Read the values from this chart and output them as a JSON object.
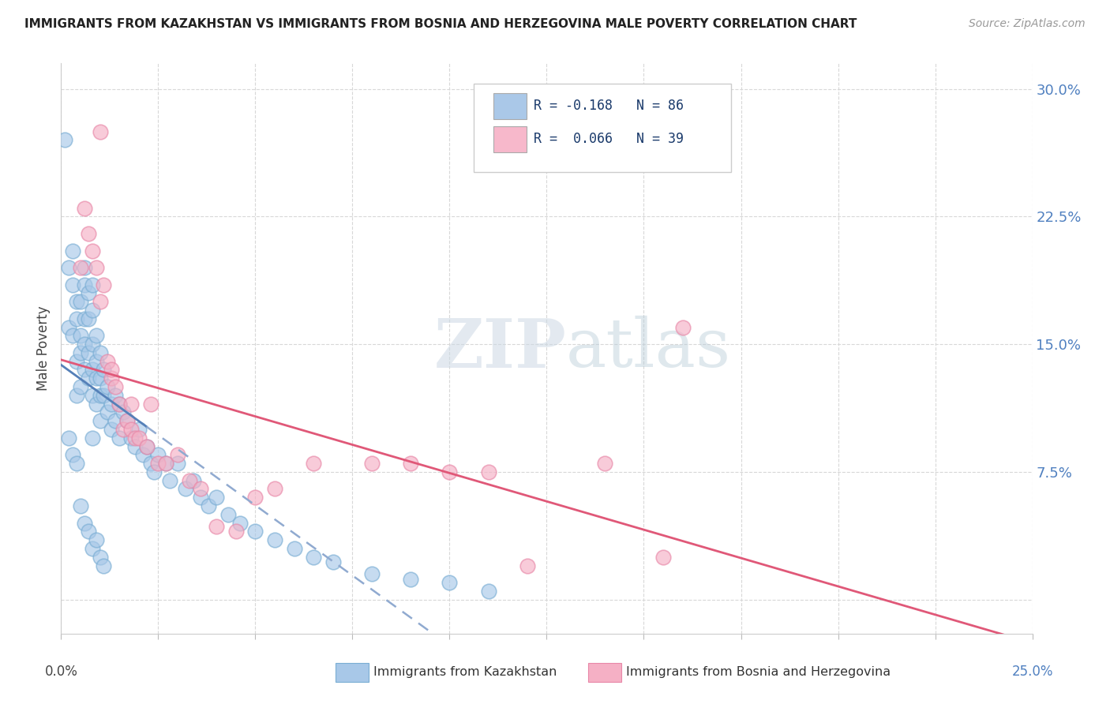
{
  "title": "IMMIGRANTS FROM KAZAKHSTAN VS IMMIGRANTS FROM BOSNIA AND HERZEGOVINA MALE POVERTY CORRELATION CHART",
  "source": "Source: ZipAtlas.com",
  "ylabel": "Male Poverty",
  "ytick_vals": [
    0.0,
    0.075,
    0.15,
    0.225,
    0.3
  ],
  "ytick_labels": [
    "",
    "7.5%",
    "15.0%",
    "22.5%",
    "30.0%"
  ],
  "xlim": [
    0.0,
    0.25
  ],
  "ylim": [
    -0.02,
    0.315
  ],
  "legend_entries": [
    {
      "label": "R = -0.168   N = 86",
      "facecolor": "#aac8e8"
    },
    {
      "label": "R =  0.066   N = 39",
      "facecolor": "#f7b8cb"
    }
  ],
  "series1_label": "Immigrants from Kazakhstan",
  "series2_label": "Immigrants from Bosnia and Herzegovina",
  "series1_facecolor": "#a8c8e8",
  "series2_facecolor": "#f5b0c5",
  "series1_edgecolor": "#7aaed4",
  "series2_edgecolor": "#e888a8",
  "trendline1_solid_color": "#5580b8",
  "trendline1_dash_color": "#90aad0",
  "trendline2_color": "#e05878",
  "background_color": "#ffffff",
  "grid_color": "#d8d8d8",
  "watermark_color": "#dce8f0",
  "title_color": "#222222",
  "source_color": "#999999",
  "ylabel_color": "#444444",
  "ytick_color": "#5080c0",
  "xtick_color": "#444444",
  "xtick_right_color": "#5080c0",
  "series1_x": [
    0.001,
    0.002,
    0.002,
    0.003,
    0.003,
    0.003,
    0.004,
    0.004,
    0.004,
    0.004,
    0.005,
    0.005,
    0.005,
    0.005,
    0.006,
    0.006,
    0.006,
    0.006,
    0.006,
    0.007,
    0.007,
    0.007,
    0.007,
    0.008,
    0.008,
    0.008,
    0.008,
    0.008,
    0.009,
    0.009,
    0.009,
    0.009,
    0.01,
    0.01,
    0.01,
    0.01,
    0.011,
    0.011,
    0.012,
    0.012,
    0.013,
    0.013,
    0.014,
    0.014,
    0.015,
    0.015,
    0.016,
    0.017,
    0.018,
    0.019,
    0.02,
    0.021,
    0.022,
    0.023,
    0.024,
    0.025,
    0.027,
    0.028,
    0.03,
    0.032,
    0.034,
    0.036,
    0.038,
    0.04,
    0.043,
    0.046,
    0.05,
    0.055,
    0.06,
    0.065,
    0.07,
    0.08,
    0.09,
    0.1,
    0.11,
    0.002,
    0.003,
    0.004,
    0.005,
    0.006,
    0.007,
    0.008,
    0.008,
    0.009,
    0.01,
    0.011
  ],
  "series1_y": [
    0.27,
    0.195,
    0.16,
    0.205,
    0.185,
    0.155,
    0.175,
    0.165,
    0.14,
    0.12,
    0.175,
    0.155,
    0.145,
    0.125,
    0.195,
    0.185,
    0.165,
    0.15,
    0.135,
    0.18,
    0.165,
    0.145,
    0.13,
    0.185,
    0.17,
    0.15,
    0.135,
    0.12,
    0.155,
    0.14,
    0.13,
    0.115,
    0.145,
    0.13,
    0.12,
    0.105,
    0.135,
    0.12,
    0.125,
    0.11,
    0.115,
    0.1,
    0.12,
    0.105,
    0.115,
    0.095,
    0.11,
    0.105,
    0.095,
    0.09,
    0.1,
    0.085,
    0.09,
    0.08,
    0.075,
    0.085,
    0.08,
    0.07,
    0.08,
    0.065,
    0.07,
    0.06,
    0.055,
    0.06,
    0.05,
    0.045,
    0.04,
    0.035,
    0.03,
    0.025,
    0.022,
    0.015,
    0.012,
    0.01,
    0.005,
    0.095,
    0.085,
    0.08,
    0.055,
    0.045,
    0.04,
    0.095,
    0.03,
    0.035,
    0.025,
    0.02
  ],
  "series2_x": [
    0.005,
    0.006,
    0.007,
    0.008,
    0.009,
    0.01,
    0.011,
    0.012,
    0.013,
    0.014,
    0.015,
    0.016,
    0.017,
    0.018,
    0.019,
    0.02,
    0.022,
    0.023,
    0.025,
    0.027,
    0.03,
    0.033,
    0.036,
    0.04,
    0.045,
    0.05,
    0.055,
    0.065,
    0.08,
    0.09,
    0.1,
    0.11,
    0.12,
    0.14,
    0.155,
    0.16,
    0.01,
    0.013,
    0.018
  ],
  "series2_y": [
    0.195,
    0.23,
    0.215,
    0.205,
    0.195,
    0.175,
    0.185,
    0.14,
    0.13,
    0.125,
    0.115,
    0.1,
    0.105,
    0.1,
    0.095,
    0.095,
    0.09,
    0.115,
    0.08,
    0.08,
    0.085,
    0.07,
    0.065,
    0.043,
    0.04,
    0.06,
    0.065,
    0.08,
    0.08,
    0.08,
    0.075,
    0.075,
    0.02,
    0.08,
    0.025,
    0.16,
    0.275,
    0.135,
    0.115
  ]
}
